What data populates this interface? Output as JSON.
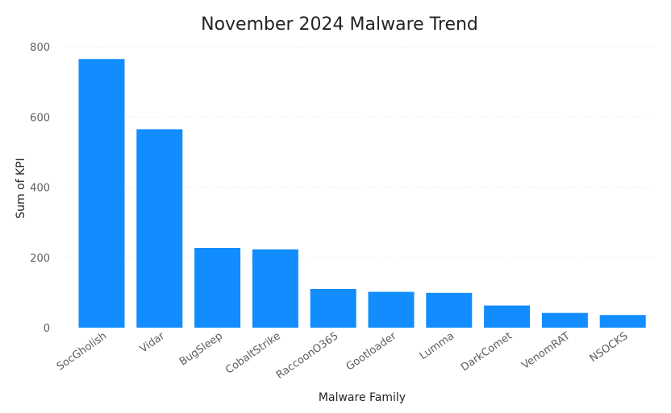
{
  "chart_data": {
    "type": "bar",
    "title": "November 2024 Malware Trend",
    "xlabel": "Malware Family",
    "ylabel": "Sum of KPI",
    "categories": [
      "SocGholish",
      "Vidar",
      "BugSleep",
      "CobaltStrike",
      "RaccoonO365",
      "Gootloader",
      "Lumma",
      "DarkComet",
      "VenomRAT",
      "NSOCKS"
    ],
    "values": [
      765,
      565,
      227,
      223,
      110,
      102,
      99,
      63,
      42,
      36
    ],
    "ylim": [
      0,
      800
    ],
    "yticks": [
      0,
      200,
      400,
      600,
      800
    ],
    "grid": true,
    "color": "#118DFF"
  }
}
